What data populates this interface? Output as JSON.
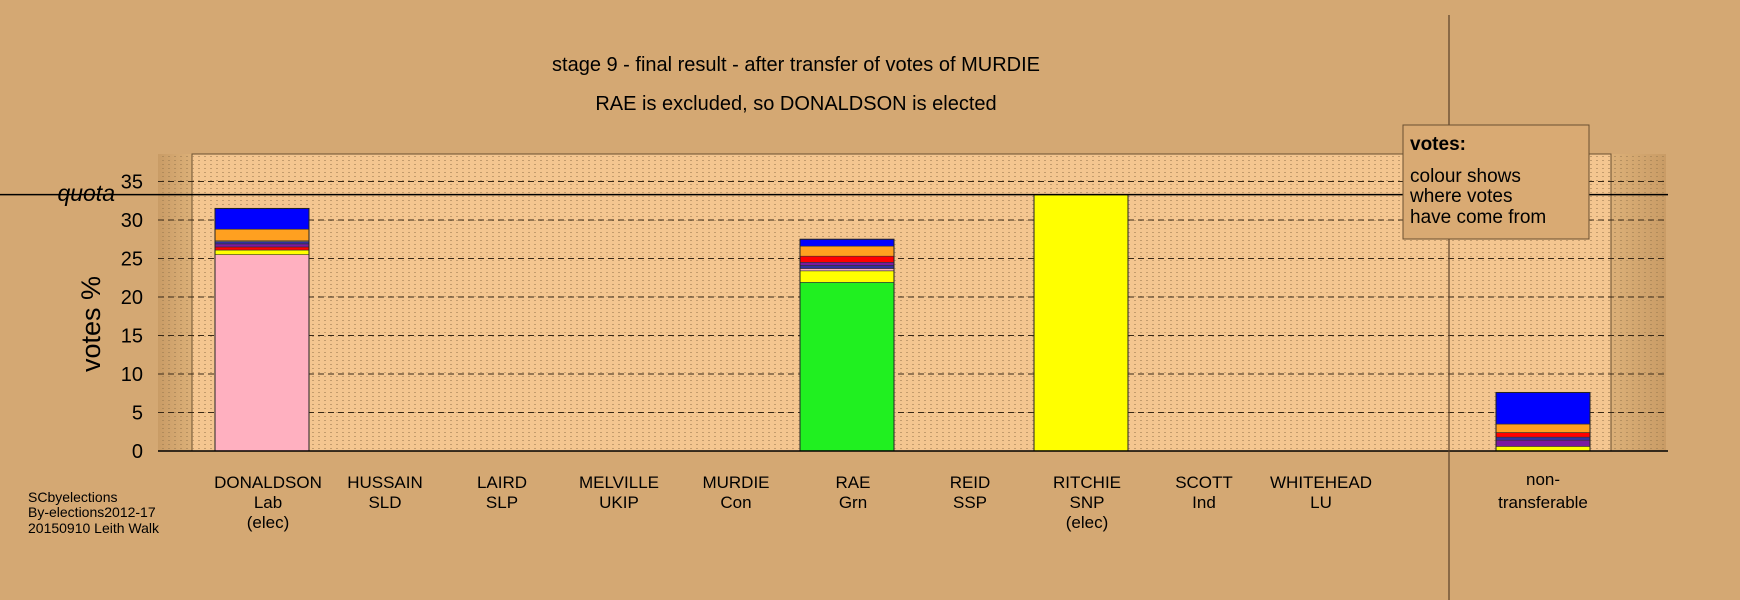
{
  "chart_data": {
    "type": "bar",
    "stacked": true,
    "title": "stage 9 - final result - after transfer of votes of MURDIE",
    "subtitle": "RAE is excluded, so DONALDSON is elected",
    "ylabel": "votes %",
    "ylim": [
      0,
      35
    ],
    "yticks": [
      0,
      5,
      10,
      15,
      20,
      25,
      30,
      35
    ],
    "quota": {
      "label": "quota",
      "value": 33.3
    },
    "grid": true,
    "candidates": [
      {
        "name": "DONALDSON",
        "party": "Lab",
        "note": "(elec)"
      },
      {
        "name": "HUSSAIN",
        "party": "SLD",
        "note": ""
      },
      {
        "name": "LAIRD",
        "party": "SLP",
        "note": ""
      },
      {
        "name": "MELVILLE",
        "party": "UKIP",
        "note": ""
      },
      {
        "name": "MURDIE",
        "party": "Con",
        "note": ""
      },
      {
        "name": "RAE",
        "party": "Grn",
        "note": ""
      },
      {
        "name": "REID",
        "party": "SSP",
        "note": ""
      },
      {
        "name": "RITCHIE",
        "party": "SNP",
        "note": "(elec)"
      },
      {
        "name": "SCOTT",
        "party": "Ind",
        "note": ""
      },
      {
        "name": "WHITEHEAD",
        "party": "LU",
        "note": ""
      }
    ],
    "nontransferable_label": [
      "non-",
      "transferable"
    ],
    "bars": [
      {
        "segments": [
          {
            "color": "#ffb0c0",
            "value": 25.5
          },
          {
            "color": "#ffff00",
            "value": 0.6
          },
          {
            "color": "#ff0000",
            "value": 0.4
          },
          {
            "color": "#7a1aa0",
            "value": 0.4
          },
          {
            "color": "#3030a0",
            "value": 0.3
          },
          {
            "color": "#ffffff",
            "value": 0.1
          },
          {
            "color": "#ffa020",
            "value": 1.5
          },
          {
            "color": "#0000ff",
            "value": 2.7
          }
        ]
      },
      {
        "segments": []
      },
      {
        "segments": []
      },
      {
        "segments": []
      },
      {
        "segments": []
      },
      {
        "segments": [
          {
            "color": "#20f020",
            "value": 21.9
          },
          {
            "color": "#ffff00",
            "value": 1.5
          },
          {
            "color": "#ffb0c0",
            "value": 0.3
          },
          {
            "color": "#3030a0",
            "value": 0.4
          },
          {
            "color": "#7a1aa0",
            "value": 0.4
          },
          {
            "color": "#ff0000",
            "value": 0.8
          },
          {
            "color": "#ffa020",
            "value": 1.3
          },
          {
            "color": "#0000ff",
            "value": 0.9
          }
        ]
      },
      {
        "segments": []
      },
      {
        "segments": [
          {
            "color": "#ffff00",
            "value": 33.3
          }
        ]
      },
      {
        "segments": []
      },
      {
        "segments": []
      }
    ],
    "nontransferable": {
      "segments": [
        {
          "color": "#ffff00",
          "value": 0.6
        },
        {
          "color": "#7a1aa0",
          "value": 0.8
        },
        {
          "color": "#3030a0",
          "value": 0.4
        },
        {
          "color": "#ff0000",
          "value": 0.6
        },
        {
          "color": "#ffa020",
          "value": 1.1
        },
        {
          "color": "#0000ff",
          "value": 4.1
        }
      ]
    },
    "legend": {
      "title": "votes:",
      "lines": [
        "colour shows",
        "where votes",
        "have come from"
      ]
    },
    "source": [
      "SCbyelections",
      "By-elections2012-17",
      "20150910 Leith Walk"
    ]
  }
}
